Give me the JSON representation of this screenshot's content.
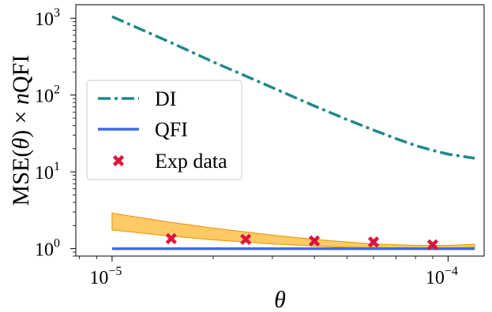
{
  "chart_data": {
    "type": "line",
    "xscale": "log",
    "yscale": "log",
    "xlim": [
      7.8e-06,
      0.000128
    ],
    "ylim": [
      0.8,
      1500
    ],
    "xticks": [
      {
        "value": 1e-05,
        "base": "10",
        "exp": "−5"
      },
      {
        "value": 0.0001,
        "base": "10",
        "exp": "−4"
      }
    ],
    "yticks": [
      {
        "value": 1,
        "base": "10",
        "exp": "0"
      },
      {
        "value": 10,
        "base": "10",
        "exp": "1"
      },
      {
        "value": 100,
        "base": "10",
        "exp": "2"
      },
      {
        "value": 1000,
        "base": "10",
        "exp": "3"
      }
    ],
    "xlabel": "θ",
    "ylabel": {
      "prefix": "MSE(",
      "theta": "θ",
      "mid": ") × ",
      "n": "n",
      "suffix": "QFI"
    },
    "grid": false,
    "legend_position": "center-left",
    "series": [
      {
        "name": "DI",
        "style": "dashdot",
        "color": "#1f8a87",
        "x": [
          1e-05,
          1.5e-05,
          2e-05,
          3e-05,
          4e-05,
          5e-05,
          6e-05,
          7e-05,
          8e-05,
          9e-05,
          0.0001,
          0.00012
        ],
        "y": [
          1050,
          480,
          270,
          125,
          72,
          48,
          35,
          27,
          22,
          19,
          17,
          15
        ]
      },
      {
        "name": "QFI",
        "style": "solid",
        "color": "#4169e1",
        "x": [
          1e-05,
          0.00012
        ],
        "y": [
          1,
          1
        ]
      },
      {
        "name": "Exp data",
        "style": "marker-x",
        "color": "#dc143c",
        "x": [
          1.5e-05,
          2.5e-05,
          4e-05,
          6e-05,
          9e-05
        ],
        "y": [
          1.35,
          1.32,
          1.26,
          1.22,
          1.12
        ]
      }
    ],
    "band": {
      "color": "#ffa500",
      "alpha": 0.6,
      "x": [
        1e-05,
        1.5e-05,
        2e-05,
        3e-05,
        4e-05,
        5e-05,
        6e-05,
        8e-05,
        0.0001,
        0.00012
      ],
      "lower": [
        1.75,
        1.45,
        1.3,
        1.15,
        1.08,
        1.04,
        1.03,
        1.02,
        1.02,
        1.04
      ],
      "upper": [
        2.9,
        2.2,
        1.85,
        1.5,
        1.32,
        1.22,
        1.15,
        1.1,
        1.1,
        1.14
      ]
    }
  }
}
